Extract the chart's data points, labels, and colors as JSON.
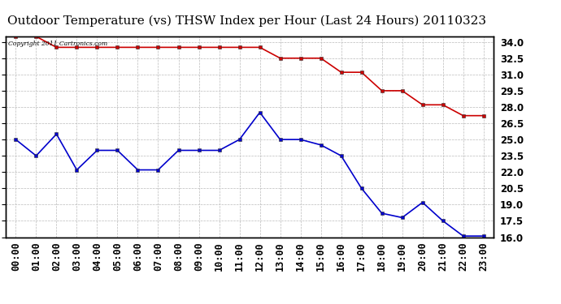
{
  "title": "Outdoor Temperature (vs) THSW Index per Hour (Last 24 Hours) 20110323",
  "copyright_text": "Copyright 2011 Cartronics.com",
  "hours": [
    0,
    1,
    2,
    3,
    4,
    5,
    6,
    7,
    8,
    9,
    10,
    11,
    12,
    13,
    14,
    15,
    16,
    17,
    18,
    19,
    20,
    21,
    22,
    23
  ],
  "hour_labels": [
    "00:00",
    "01:00",
    "02:00",
    "03:00",
    "04:00",
    "05:00",
    "06:00",
    "07:00",
    "08:00",
    "09:00",
    "10:00",
    "11:00",
    "12:00",
    "13:00",
    "14:00",
    "15:00",
    "16:00",
    "17:00",
    "18:00",
    "19:00",
    "20:00",
    "21:00",
    "22:00",
    "23:00"
  ],
  "thsw": [
    34.5,
    34.5,
    33.5,
    33.5,
    33.5,
    33.5,
    33.5,
    33.5,
    33.5,
    33.5,
    33.5,
    33.5,
    33.5,
    32.5,
    32.5,
    32.5,
    31.2,
    31.2,
    29.5,
    29.5,
    28.2,
    28.2,
    27.2,
    27.2
  ],
  "temp": [
    25.0,
    23.5,
    25.5,
    22.2,
    24.0,
    24.0,
    22.2,
    22.2,
    24.0,
    24.0,
    24.0,
    25.0,
    27.5,
    25.0,
    25.0,
    24.5,
    23.5,
    20.5,
    18.2,
    17.8,
    19.2,
    17.5,
    16.1,
    16.1
  ],
  "thsw_color": "#cc0000",
  "temp_color": "#0000cc",
  "bg_color": "#ffffff",
  "grid_color": "#bbbbbb",
  "ylim": [
    16.0,
    34.5
  ],
  "yticks": [
    16.0,
    17.5,
    19.0,
    20.5,
    22.0,
    23.5,
    25.0,
    26.5,
    28.0,
    29.5,
    31.0,
    32.5,
    34.0
  ],
  "marker_size": 3,
  "line_width": 1.2,
  "title_fontsize": 11,
  "tick_fontsize": 8.5
}
